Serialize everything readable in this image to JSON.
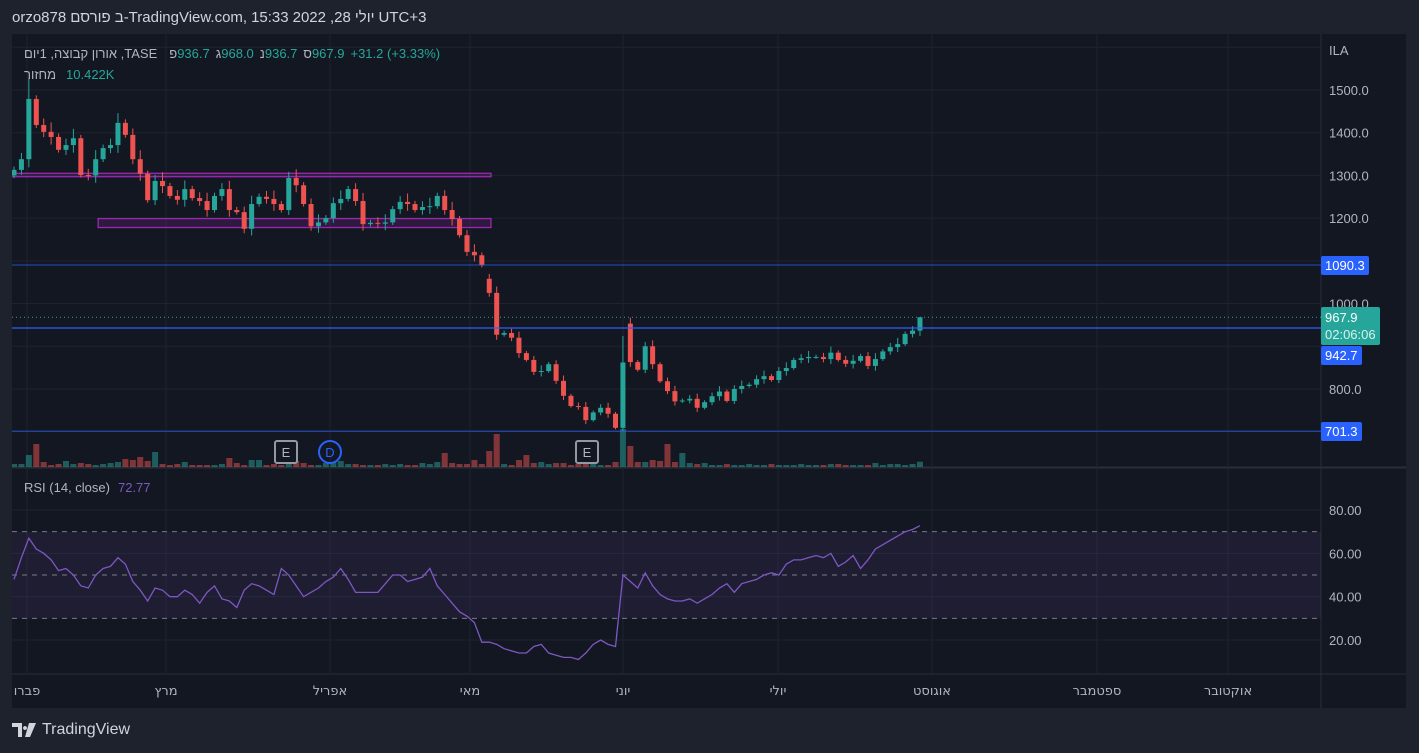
{
  "header": {
    "tokens": [
      "orzo878",
      "פורסם",
      "ב-TradingView.com,",
      "15:33",
      "2022",
      ",28",
      "יולי",
      "UTC+3"
    ]
  },
  "legend": {
    "symbol": "TASE, אורון קבוצה, 1יום",
    "open_label": "פ",
    "open": "936.7",
    "high_label": "ג",
    "high": "968.0",
    "low_label": "נ",
    "low": "936.7",
    "close_label": "ס",
    "close": "967.9",
    "change": "+31.2 (+3.33%)",
    "volume_label": "מחזור",
    "volume": "10.422K"
  },
  "rsi_legend": {
    "label": "RSI (14, close)",
    "value": "72.77"
  },
  "price_axis": {
    "currency": "ILA",
    "ticks": [
      "1500.0",
      "1400.0",
      "1300.0",
      "1200.0",
      "1000.0",
      "800.0"
    ]
  },
  "price_labels": {
    "last": "967.9",
    "countdown": "02:06:06",
    "line1": "1090.3",
    "line2": "942.7",
    "line3": "701.3"
  },
  "rsi_axis": {
    "ticks": [
      "80.00",
      "60.00",
      "40.00",
      "20.00"
    ]
  },
  "time_axis": {
    "labels": [
      "פברו",
      "מרץ",
      "אפריל",
      "מאי",
      "יוני",
      "יולי",
      "אוגוסט",
      "ספטמבר",
      "אוקטובר"
    ]
  },
  "markers": [
    {
      "text": "E",
      "type": "earnings"
    },
    {
      "text": "D",
      "type": "dividend"
    },
    {
      "text": "E",
      "type": "earnings"
    }
  ],
  "footer": {
    "brand": "TradingView"
  },
  "colors": {
    "up": "#26a69a",
    "down": "#ef5350",
    "hline": "#2962ff",
    "rsi": "#7e57c2",
    "box": "#9c27b0"
  },
  "chart_data": {
    "type": "candlestick",
    "title": "TASE, אורון קבוצה, 1יום",
    "ylim": [
      680,
      1600
    ],
    "close": [
      1313,
      1338,
      1479,
      1418,
      1402,
      1390,
      1360,
      1371,
      1387,
      1301,
      1300,
      1338,
      1364,
      1371,
      1423,
      1395,
      1338,
      1304,
      1242,
      1287,
      1275,
      1252,
      1243,
      1268,
      1247,
      1240,
      1219,
      1252,
      1268,
      1219,
      1214,
      1175,
      1233,
      1250,
      1245,
      1233,
      1219,
      1294,
      1277,
      1233,
      1181,
      1190,
      1200,
      1235,
      1245,
      1268,
      1240,
      1186,
      1189,
      1187,
      1190,
      1221,
      1238,
      1233,
      1219,
      1226,
      1228,
      1252,
      1219,
      1198,
      1160,
      1121,
      1113,
      1090,
      1025,
      927,
      931,
      920,
      884,
      868,
      840,
      842,
      858,
      819,
      784,
      760,
      758,
      727,
      745,
      756,
      742,
      709,
      862,
      863,
      845,
      900,
      858,
      818,
      795,
      771,
      773,
      777,
      756,
      769,
      783,
      794,
      772,
      800,
      807,
      810,
      823,
      830,
      821,
      842,
      849,
      868,
      872,
      875,
      875,
      870,
      885,
      868,
      859,
      866,
      877,
      854,
      870,
      888,
      898,
      905,
      929,
      936.7,
      967.9
    ],
    "open_overrides": {
      "0": 1300,
      "2": 1338,
      "64": 1058,
      "82": 709,
      "83": 953,
      "122": 936.7
    },
    "high_overrides": {
      "2": 1528,
      "82": 924,
      "122": 968.0
    },
    "volume_k": [
      6,
      6,
      24,
      46,
      10,
      4,
      6,
      12,
      6,
      8,
      6,
      4,
      6,
      8,
      10,
      16,
      14,
      20,
      12,
      30,
      6,
      4,
      6,
      10,
      4,
      4,
      4,
      4,
      6,
      18,
      8,
      4,
      14,
      14,
      4,
      6,
      4,
      6,
      12,
      8,
      4,
      4,
      8,
      10,
      12,
      6,
      6,
      4,
      4,
      4,
      6,
      4,
      6,
      4,
      4,
      8,
      6,
      10,
      28,
      8,
      6,
      6,
      14,
      6,
      32,
      66,
      6,
      4,
      14,
      24,
      8,
      10,
      6,
      8,
      8,
      4,
      6,
      8,
      10,
      4,
      4,
      10,
      76,
      42,
      10,
      10,
      14,
      12,
      46,
      10,
      28,
      8,
      6,
      8,
      4,
      4,
      6,
      4,
      4,
      6,
      4,
      4,
      6,
      4,
      4,
      4,
      6,
      4,
      4,
      4,
      6,
      6,
      4,
      4,
      4,
      4,
      8,
      4,
      6,
      6,
      4,
      6,
      10.422
    ],
    "rsi": [
      48,
      58,
      67,
      62,
      60,
      57,
      52,
      53,
      50,
      45,
      44,
      50,
      53,
      54,
      58,
      55,
      47,
      43,
      38,
      44,
      43,
      40,
      40,
      43,
      41,
      37,
      42,
      45,
      39,
      38,
      35,
      43,
      46,
      45,
      43,
      41,
      53,
      50,
      45,
      40,
      42,
      44,
      47,
      49,
      53,
      48,
      42,
      42,
      42,
      42,
      46,
      50,
      50,
      47,
      48,
      49,
      53,
      45,
      41,
      37,
      33,
      31,
      28,
      19,
      19,
      18,
      16,
      15,
      14,
      14,
      17,
      18,
      14,
      13,
      12,
      12,
      11,
      14,
      18,
      20,
      18,
      17,
      50,
      47,
      44,
      51,
      45,
      41,
      39,
      38,
      38,
      39,
      37,
      39,
      41,
      44,
      46,
      42,
      46,
      47,
      48,
      50,
      51,
      50,
      55,
      57,
      57,
      58,
      59,
      58,
      60,
      54,
      56,
      59,
      53,
      57,
      62,
      64,
      66,
      68,
      70,
      71,
      72.77
    ],
    "rsi_levels": [
      70,
      50,
      30
    ],
    "horizontal_lines": [
      1090.3,
      942.7,
      701.3
    ],
    "last_price_line": 967.9,
    "boxes": [
      {
        "from_bar": 0,
        "to_bar": 64.5,
        "top": 1305,
        "bottom": 1297
      },
      {
        "from_bar": 11.6,
        "to_bar": 64.5,
        "top": 1199,
        "bottom": 1178
      }
    ]
  }
}
